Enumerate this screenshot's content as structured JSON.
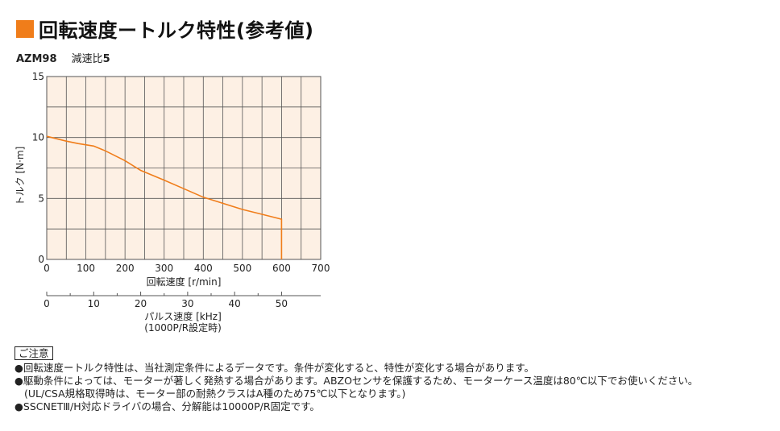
{
  "title": "回転速度ートルク特性(参考値)",
  "model": {
    "name": "AZM98",
    "ratio_label": "減速比",
    "ratio_value": "5"
  },
  "colors": {
    "accent": "#f07d1a",
    "plot_bg": "#fdf0e4",
    "curve": "#f07d1a"
  },
  "chart_data": {
    "type": "line",
    "ylabel": "トルク [N·m]",
    "xlabel": "回転速度 [r/min]",
    "xlim": [
      0,
      700
    ],
    "ylim": [
      0,
      15
    ],
    "x_ticks": [
      "0",
      "100",
      "200",
      "300",
      "400",
      "500",
      "600",
      "700"
    ],
    "y_ticks": [
      "0",
      "5",
      "10",
      "15"
    ],
    "grid": true,
    "series": [
      {
        "x": [
          0,
          25,
          50,
          80,
          120,
          150,
          200,
          240,
          300,
          350,
          400,
          450,
          500,
          550,
          600,
          600
        ],
        "y": [
          10.1,
          9.9,
          9.7,
          9.5,
          9.3,
          8.9,
          8.1,
          7.3,
          6.5,
          5.8,
          5.1,
          4.6,
          4.1,
          3.7,
          3.3,
          0
        ]
      }
    ],
    "secondary_x_axis": {
      "label": "パルス速度 [kHz]",
      "sublabel": "(1000P/R設定時)",
      "ticks": [
        "0",
        "10",
        "20",
        "30",
        "40",
        "50"
      ],
      "tick_values": [
        0,
        10,
        20,
        30,
        40,
        50
      ],
      "range": [
        0,
        58.33
      ]
    }
  },
  "notes": {
    "header": "ご注意",
    "lines": [
      "●回転速度ートルク特性は、当社測定条件によるデータです。条件が変化すると、特性が変化する場合があります。",
      "●駆動条件によっては、モーターが著しく発熱する場合があります。ABZOセンサを保護するため、モーターケース温度は80℃以下でお使いください。",
      "(UL/CSA規格取得時は、モーター部の耐熱クラスはA種のため75℃以下となります。)",
      "●SSCNETⅢ/H対応ドライバの場合、分解能は10000P/R固定です。"
    ]
  }
}
